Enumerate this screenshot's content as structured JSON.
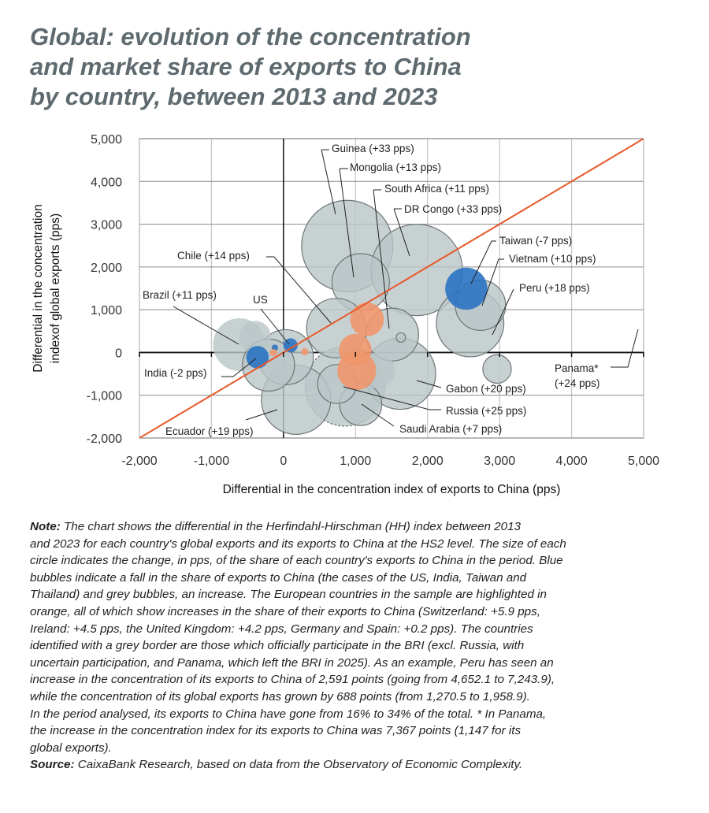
{
  "title_lines": [
    "Global: evolution of the concentration",
    "and market share of exports to China",
    "by country, between 2013 and 2023"
  ],
  "colors": {
    "title": "#5e6a6f",
    "grey_bubble": "#b9c5c7",
    "blue_bubble": "#2a73c2",
    "orange_bubble": "#f0966b",
    "diagonal": "#e8582a"
  },
  "chart_data": {
    "type": "scatter",
    "subtype": "bubble",
    "xlabel": "Differential in the concentration index of exports to China (pps)",
    "ylabel_lines": [
      "Differential in the concentration",
      "indexof global exports (pps)"
    ],
    "xlim": [
      -2000,
      5000
    ],
    "ylim": [
      -2000,
      5000
    ],
    "x_ticks": [
      "-2,000",
      "-1,000",
      "0",
      "1,000",
      "2,000",
      "3,000",
      "4,000",
      "5,000"
    ],
    "y_ticks": [
      "5,000",
      "4,000",
      "3,000",
      "2,000",
      "1,000",
      "0",
      "-1,000",
      "-2,000"
    ],
    "grid": true,
    "reference_line": "y = x",
    "bubble_size_unit": "change in share of exports to China (pps)",
    "bubbles": [
      {
        "label": "Guinea (+33 pps)",
        "x": 886,
        "y": 2490,
        "size": 33,
        "color": "grey",
        "border": "solid"
      },
      {
        "label": "DR Congo (+33 pps)",
        "x": 1850,
        "y": 1930,
        "size": 33,
        "color": "grey",
        "border": "solid"
      },
      {
        "label": "Mongolia (+13 pps)",
        "x": 1072,
        "y": 1640,
        "size": 13,
        "color": "grey",
        "border": "solid"
      },
      {
        "label": "Russia (+25 pps)",
        "x": 853,
        "y": -792,
        "size": 25,
        "color": "grey",
        "border": "dashed"
      },
      {
        "label": "Gabon (+20 pps)",
        "x": 1619,
        "y": -497,
        "size": 20,
        "color": "grey",
        "border": "solid"
      },
      {
        "label": "Ecuador (+19 pps)",
        "x": 175,
        "y": -1105,
        "size": 19,
        "color": "grey",
        "border": "solid"
      },
      {
        "label": "Peru (+18 pps)",
        "x": 2591,
        "y": 688,
        "size": 18,
        "color": "grey",
        "border": "solid"
      },
      {
        "label": "Chile (+14 pps)",
        "x": 733,
        "y": 570,
        "size": 14,
        "color": "grey",
        "border": "solid"
      },
      {
        "label": "",
        "x": 33,
        "y": -110,
        "size": 12,
        "color": "grey",
        "border": "solid"
      },
      {
        "label": "South Africa (+11 pps)",
        "x": 1510,
        "y": 420,
        "size": 11,
        "color": "grey",
        "border": "solid"
      },
      {
        "label": "Brazil (+11 pps)",
        "x": -612,
        "y": 184,
        "size": 11,
        "color": "grey",
        "border": "none"
      },
      {
        "label": "",
        "x": -208,
        "y": -295,
        "size": 10.7,
        "color": "grey",
        "border": "solid"
      },
      {
        "label": "Vietnam (+10 pps)",
        "x": 2735,
        "y": 1105,
        "size": 10,
        "color": "grey",
        "border": "solid"
      },
      {
        "label": "Saudi Arabia (+7 pps)",
        "x": 1072,
        "y": -1215,
        "size": 7,
        "color": "grey",
        "border": "solid"
      },
      {
        "label": "",
        "x": 744,
        "y": -737,
        "size": 6,
        "color": "grey",
        "border": "solid"
      },
      {
        "label": "",
        "x": 1302,
        "y": -424,
        "size": 5,
        "color": "grey",
        "border": "none"
      },
      {
        "label": "",
        "x": -394,
        "y": 368,
        "size": 4,
        "color": "grey",
        "border": "none"
      },
      {
        "label": "",
        "x": 2965,
        "y": -387,
        "size": 3.2,
        "color": "grey",
        "border": "solid"
      },
      {
        "label": "",
        "x": 1630,
        "y": 350,
        "size": 0.35,
        "color": "grey",
        "border": "solid"
      },
      {
        "label": "Panama* (+24 pps)",
        "x": 7367,
        "y": 1147,
        "size": 24,
        "color": "grey",
        "border": "dashed"
      },
      {
        "label": "Taiwan (-7 pps)",
        "x": 2538,
        "y": 1492,
        "size": -7,
        "color": "blue",
        "border": "none"
      },
      {
        "label": "India (-2 pps)",
        "x": -361,
        "y": -110,
        "size": -2,
        "color": "blue",
        "border": "none"
      },
      {
        "label": "US",
        "x": 98,
        "y": 166,
        "size": -0.8,
        "color": "blue",
        "border": "none"
      },
      {
        "label": "",
        "x": -120,
        "y": 110,
        "size": -0.16,
        "color": "blue",
        "border": "none"
      },
      {
        "label": "",
        "x": 1017,
        "y": -424,
        "size": 5.9,
        "color": "orange",
        "border": "none"
      },
      {
        "label": "",
        "x": 1160,
        "y": 773,
        "size": 4.5,
        "color": "orange",
        "border": "none"
      },
      {
        "label": "",
        "x": 996,
        "y": 55,
        "size": 4.2,
        "color": "orange",
        "border": "none"
      },
      {
        "label": "",
        "x": -140,
        "y": 0,
        "size": 0.2,
        "color": "orange",
        "border": "none"
      },
      {
        "label": "",
        "x": 295,
        "y": 18,
        "size": 0.2,
        "color": "orange",
        "border": "none"
      }
    ],
    "annotations": {
      "guinea": "Guinea (+33 pps)",
      "mongolia": "Mongolia (+13 pps)",
      "south_africa": "South Africa (+11 pps)",
      "dr_congo": "DR Congo (+33 pps)",
      "taiwan": "Taiwan (-7 pps)",
      "vietnam": "Vietnam (+10 pps)",
      "peru": "Peru (+18 pps)",
      "panama_1": "Panama*",
      "panama_2": "(+24 pps)",
      "gabon": "Gabon (+20 pps)",
      "russia": "Russia (+25 pps)",
      "saudi": "Saudi Arabia (+7 pps)",
      "chile": "Chile (+14 pps)",
      "brazil": "Brazil (+11 pps)",
      "us": "US",
      "india": "India (-2 pps)",
      "ecuador": "Ecuador (+19 pps)"
    }
  },
  "note": {
    "label": "Note:",
    "lines": [
      " The chart shows the differential in the Herfindahl-Hirschman (HH) index between 2013",
      "and 2023 for each country's global exports and its exports to China at the HS2 level. The size of each",
      "circle indicates the change, in pps, of the share of each country's exports to China in the period. Blue",
      "bubbles indicate a fall in the share of exports to China (the cases of the US, India, Taiwan and",
      "Thailand) and grey bubbles, an increase. The European countries in the sample are highlighted in",
      "orange, all of which show increases in the share of their exports to China (Switzerland: +5.9 pps,",
      "Ireland: +4.5 pps, the United Kingdom: +4.2 pps, Germany and Spain: +0.2 pps). The countries",
      "identified with a grey border are those which officially participate in the BRI (excl. Russia, with",
      "uncertain participation, and Panama, which left the BRI in 2025). As an example, Peru has seen an",
      "increase in the concentration of its exports to China of 2,591 points (going from 4,652.1 to 7,243.9),",
      "while the concentration of its global exports has grown by 688 points (from 1,270.5 to 1,958.9).",
      "In the period analysed, its exports to China have gone from 16% to 34% of the total. * In Panama,",
      "the increase in the concentration index for its exports to China was 7,367 points (1,147 for its",
      "global exports)."
    ],
    "source_label": "Source:",
    "source_text": " CaixaBank Research, based on data from the Observatory of Economic Complexity."
  }
}
